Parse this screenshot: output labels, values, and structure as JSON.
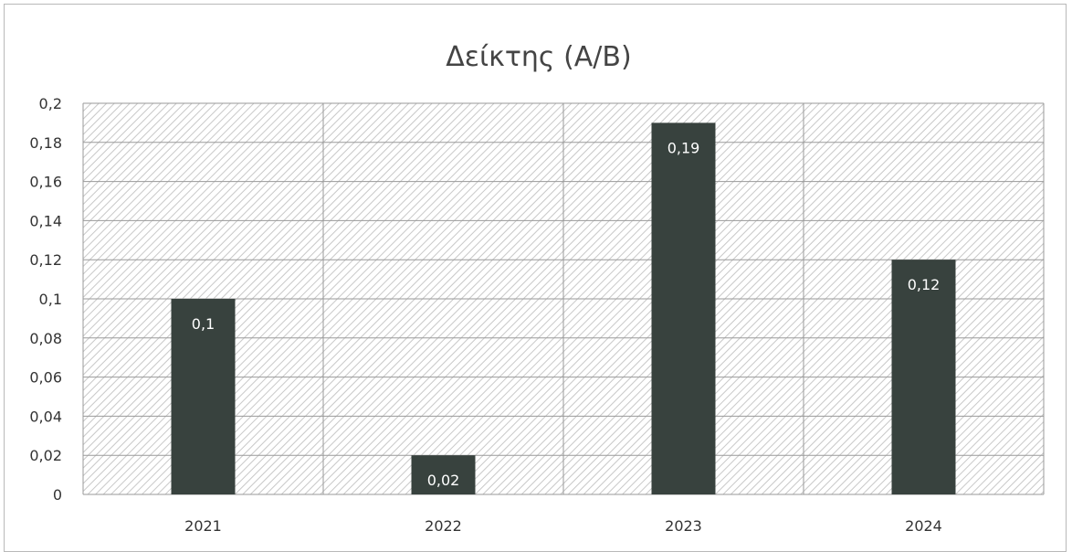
{
  "chart_data": {
    "type": "bar",
    "title": "Δείκτης (Α/Β)",
    "xlabel": "",
    "ylabel": "",
    "categories": [
      "2021",
      "2022",
      "2023",
      "2024"
    ],
    "values": [
      0.1,
      0.02,
      0.19,
      0.12
    ],
    "data_labels": [
      "0,1",
      "0,02",
      "0,19",
      "0,12"
    ],
    "ylim": [
      0,
      0.2
    ],
    "yticks": [
      0,
      0.02,
      0.04,
      0.06,
      0.08,
      0.1,
      0.12,
      0.14,
      0.16,
      0.18,
      0.2
    ],
    "ytick_labels": [
      "0",
      "0,02",
      "0,04",
      "0,06",
      "0,08",
      "0,1",
      "0,12",
      "0,14",
      "0,16",
      "0,18",
      "0,2"
    ],
    "grid": true,
    "legend": "none",
    "colors": {
      "bar": "#38423e",
      "plot_pattern": "#c8c8c8",
      "grid": "#9a9a9a"
    }
  }
}
